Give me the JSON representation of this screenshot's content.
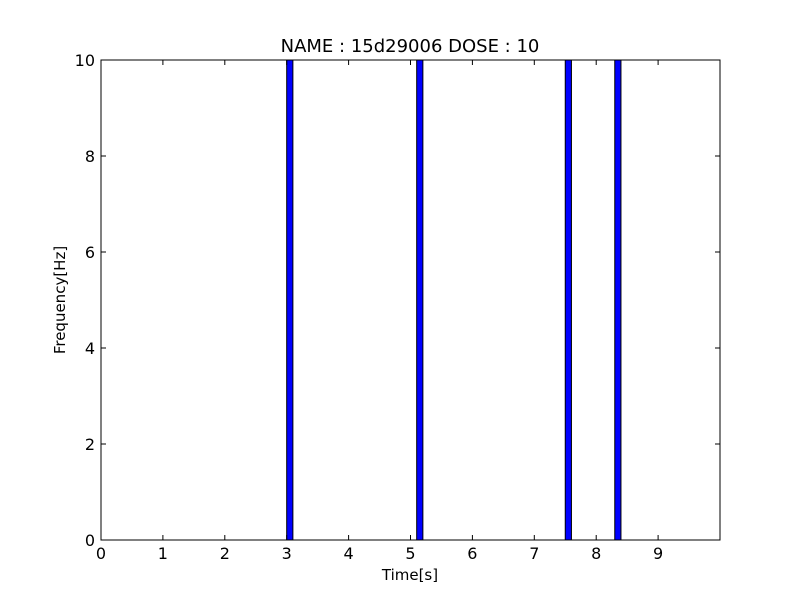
{
  "chart_data": {
    "type": "bar",
    "title": "NAME : 15d29006 DOSE : 10",
    "xlabel": "Time[s]",
    "ylabel": "Frequency[Hz]",
    "xlim": [
      0,
      10
    ],
    "ylim": [
      0,
      10
    ],
    "xticks": [
      0,
      1,
      2,
      3,
      4,
      5,
      6,
      7,
      8,
      9
    ],
    "yticks": [
      0,
      2,
      4,
      6,
      8,
      10
    ],
    "bar_width": 0.1,
    "bar_color": "#0000ff",
    "bar_edge_color": "#000000",
    "grid": false,
    "series": [
      {
        "x": [
          3.05,
          5.15,
          7.55,
          8.35
        ],
        "values": [
          10,
          10,
          10,
          10
        ]
      }
    ]
  }
}
